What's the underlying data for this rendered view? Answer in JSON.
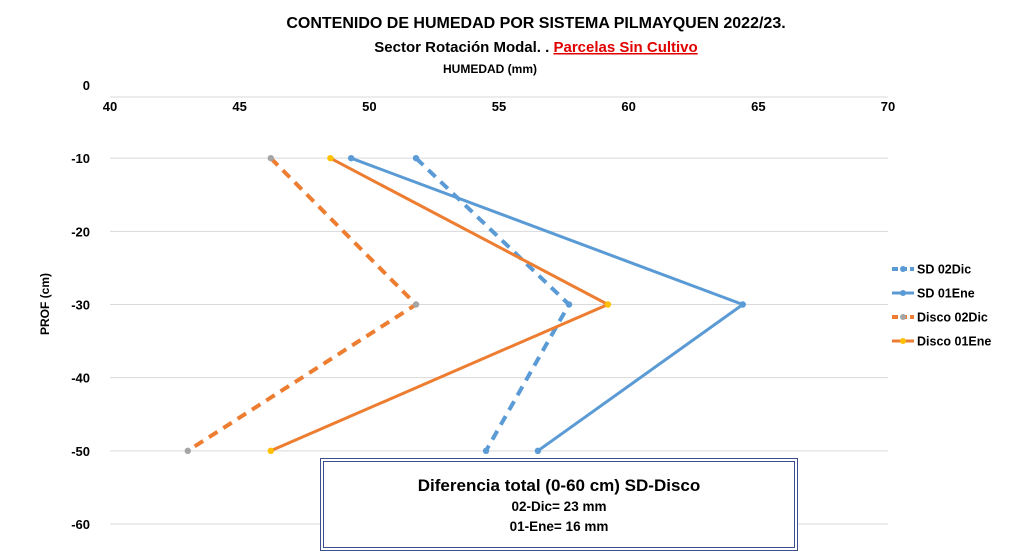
{
  "chart_data": {
    "type": "line",
    "title": "CONTENIDO DE HUMEDAD POR SISTEMA PILMAYQUEN  2022/23.",
    "subtitle_prefix": "Sector Rotación Modal. . ",
    "subtitle_highlight": "Parcelas Sin Cultivo",
    "xlabel": "HUMEDAD (mm)",
    "ylabel": "PROF (cm)",
    "xlim": [
      40,
      70
    ],
    "ylim": [
      -60,
      0
    ],
    "xticks": [
      40,
      45,
      50,
      55,
      60,
      65,
      70
    ],
    "yticks": [
      0,
      -10,
      -20,
      -30,
      -40,
      -50,
      -60
    ],
    "x_axis_position": "top",
    "grid": true,
    "legend_position": "right",
    "series": [
      {
        "name": "SD 02Dic",
        "x": [
          51.8,
          57.7,
          54.5
        ],
        "y": [
          -10,
          -30,
          -50
        ],
        "color": "#5b9bd5",
        "dash": true,
        "marker": "#5b9bd5"
      },
      {
        "name": "SD 01Ene",
        "x": [
          49.3,
          64.4,
          56.5
        ],
        "y": [
          -10,
          -30,
          -50
        ],
        "color": "#5b9bd5",
        "dash": false,
        "marker": "#5b9bd5"
      },
      {
        "name": "Disco 02Dic",
        "x": [
          46.2,
          51.8,
          43.0
        ],
        "y": [
          -10,
          -30,
          -50
        ],
        "color": "#ed7d31",
        "dash": true,
        "marker": "#a5a5a5"
      },
      {
        "name": "Disco 01Ene",
        "x": [
          48.5,
          59.2,
          46.2
        ],
        "y": [
          -10,
          -30,
          -50
        ],
        "color": "#ed7d31",
        "dash": false,
        "marker": "#ffc000"
      }
    ]
  },
  "annotation": {
    "line1": "Diferencia total (0-60 cm) SD-Disco",
    "line2": "02-Dic= 23 mm",
    "line3": "01-Ene= 16 mm"
  }
}
